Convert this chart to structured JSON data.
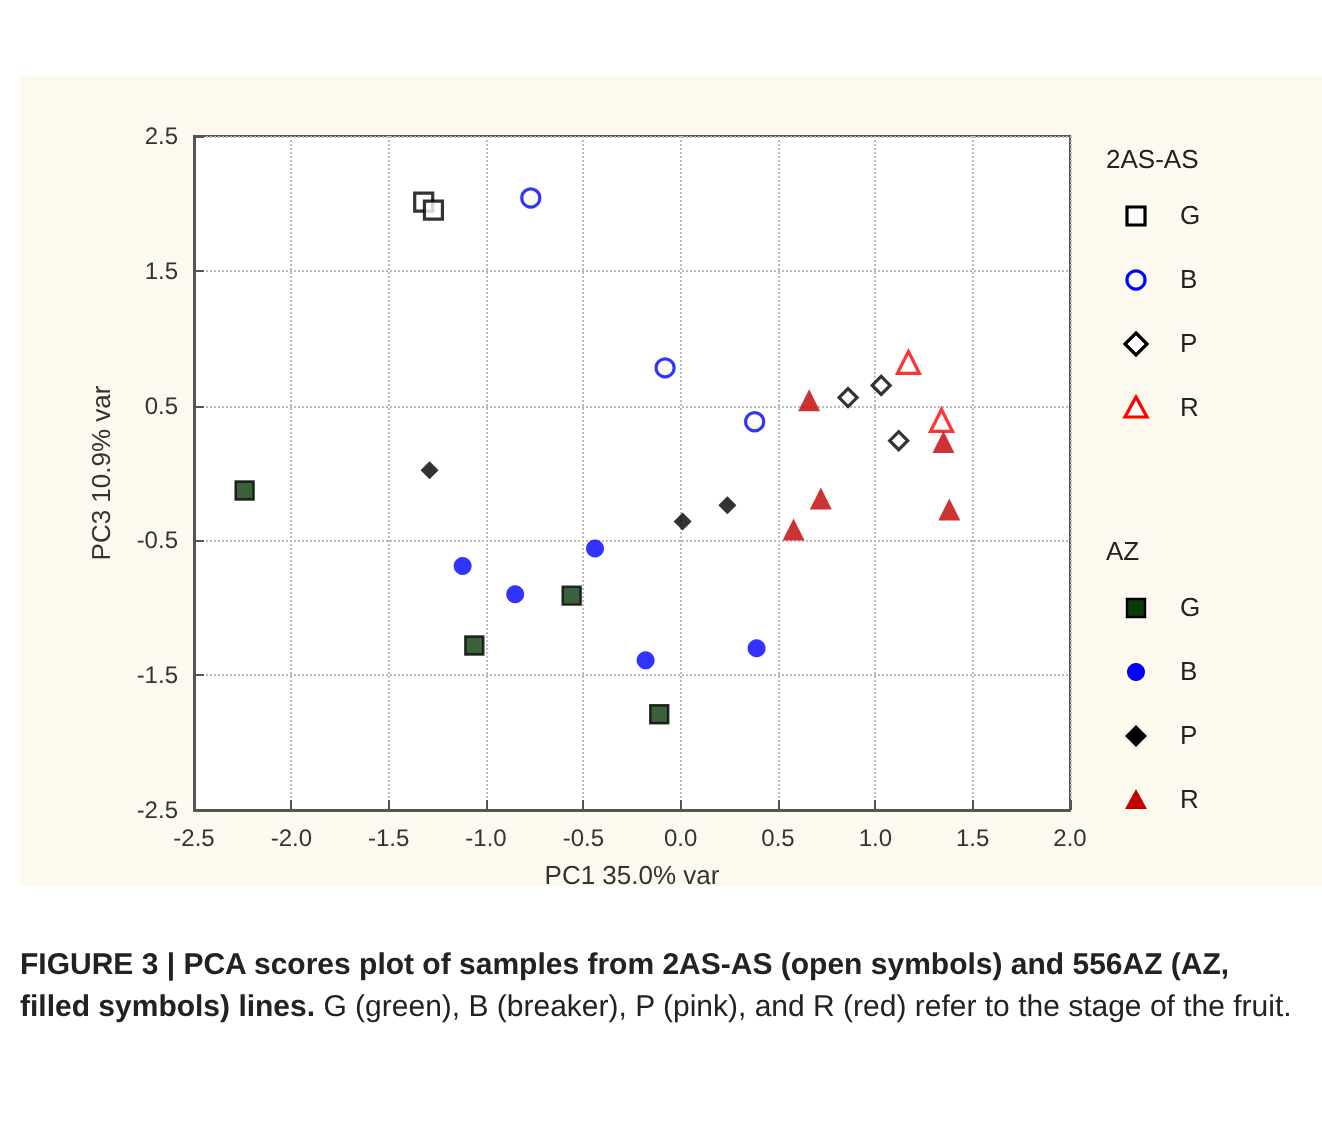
{
  "chart_data": {
    "type": "scatter",
    "title": "FIGURE 3 | PCA scores plot of samples from 2AS-AS (open symbols) and 556AZ (AZ, filled symbols) lines.",
    "annotations": [
      "G (green), B (breaker), P (pink), and R (red) refer to the stage of the fruit."
    ],
    "xlabel": "PC1 35.0% var",
    "ylabel": "PC3 10.9% var",
    "xlim": [
      -2.5,
      2.0
    ],
    "xticks": [
      -2.5,
      {
        "value": -2.0,
        "label": "-2.0"
      },
      -1.5,
      {
        "value": -1.0,
        "label": "-1.0"
      },
      -0.5,
      {
        "value": 0.0,
        "label": "0.0"
      },
      0.5,
      {
        "value": 1.0,
        "label": "1.0"
      },
      1.5,
      {
        "value": 2.0,
        "label": "2.0"
      }
    ],
    "ylim": [
      -2.5,
      2.5
    ],
    "yticks": [
      -2.5,
      -1.5,
      -0.5,
      0.5,
      1.5,
      2.5
    ],
    "grid": true,
    "legend": "right",
    "legend_title": [
      "2AS-AS",
      "AZ"
    ],
    "series": [
      {
        "name": "G",
        "marker": "square",
        "color": "#000000",
        "x": [
          -1.32,
          -1.27
        ],
        "values": [
          2.01,
          1.95
        ]
      },
      {
        "name": "B",
        "marker": "circle",
        "color": "#0000ff",
        "x": [
          -0.77,
          -0.08,
          0.38
        ],
        "values": [
          2.04,
          0.78,
          0.38
        ]
      },
      {
        "name": "P",
        "marker": "diamond",
        "color": "#000000",
        "x": [
          0.86,
          1.03,
          1.12
        ],
        "values": [
          0.56,
          0.65,
          0.24
        ]
      },
      {
        "name": "R",
        "marker": "triangle",
        "color": "#ff0000",
        "x": [
          1.17,
          1.34
        ],
        "values": [
          0.82,
          0.39
        ]
      },
      {
        "name": "G",
        "marker": "square",
        "color": "#0a3a0a",
        "x": [
          -2.24,
          -1.06,
          -0.56,
          -0.11
        ],
        "values": [
          -0.13,
          -1.28,
          -0.91,
          -1.79
        ]
      },
      {
        "name": "B",
        "marker": "circle",
        "color": "#0000ff",
        "x": [
          -1.12,
          -0.85,
          -0.44,
          -0.18,
          0.39
        ],
        "values": [
          -0.69,
          -0.9,
          -0.56,
          -1.39,
          -1.3
        ]
      },
      {
        "name": "P",
        "marker": "diamond",
        "color": "#000000",
        "x": [
          -1.29,
          0.01,
          0.24
        ],
        "values": [
          0.02,
          -0.36,
          -0.24
        ]
      },
      {
        "name": "R",
        "marker": "triangle",
        "color": "#c00000",
        "x": [
          0.66,
          0.72,
          0.58,
          1.35,
          1.38
        ],
        "values": [
          0.54,
          -0.19,
          -0.42,
          0.23,
          -0.27
        ]
      }
    ]
  }
}
